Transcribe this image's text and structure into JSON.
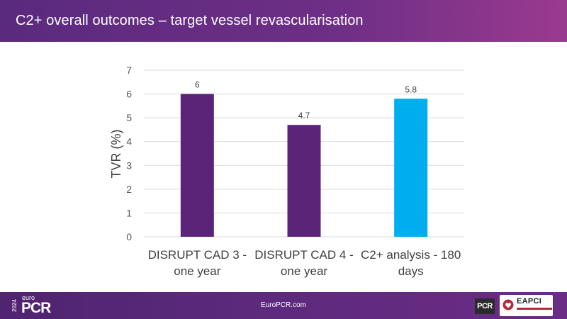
{
  "header": {
    "title": "C2+ overall outcomes – target vessel revascularisation"
  },
  "chart_data": {
    "type": "bar",
    "ylabel": "TVR (%)",
    "ylim": [
      0,
      7
    ],
    "yticks": [
      0,
      1,
      2,
      3,
      4,
      5,
      6,
      7
    ],
    "grid": true,
    "categories": [
      [
        "DISRUPT CAD 3 -",
        "one year"
      ],
      [
        "DISRUPT CAD 4 -",
        "one year"
      ],
      [
        "C2+ analysis - 180",
        "days"
      ]
    ],
    "values": [
      6,
      4.7,
      5.8
    ],
    "data_labels": [
      "6",
      "4.7",
      "5.8"
    ],
    "colors": [
      "#5b2479",
      "#5b2479",
      "#00adef"
    ]
  },
  "footer": {
    "year": "2024",
    "logo_top": "euro",
    "logo_main": "PCR",
    "url": "EuroPCR.com",
    "pcr_badge": "PCR",
    "eapci_label": "EAPCI"
  }
}
